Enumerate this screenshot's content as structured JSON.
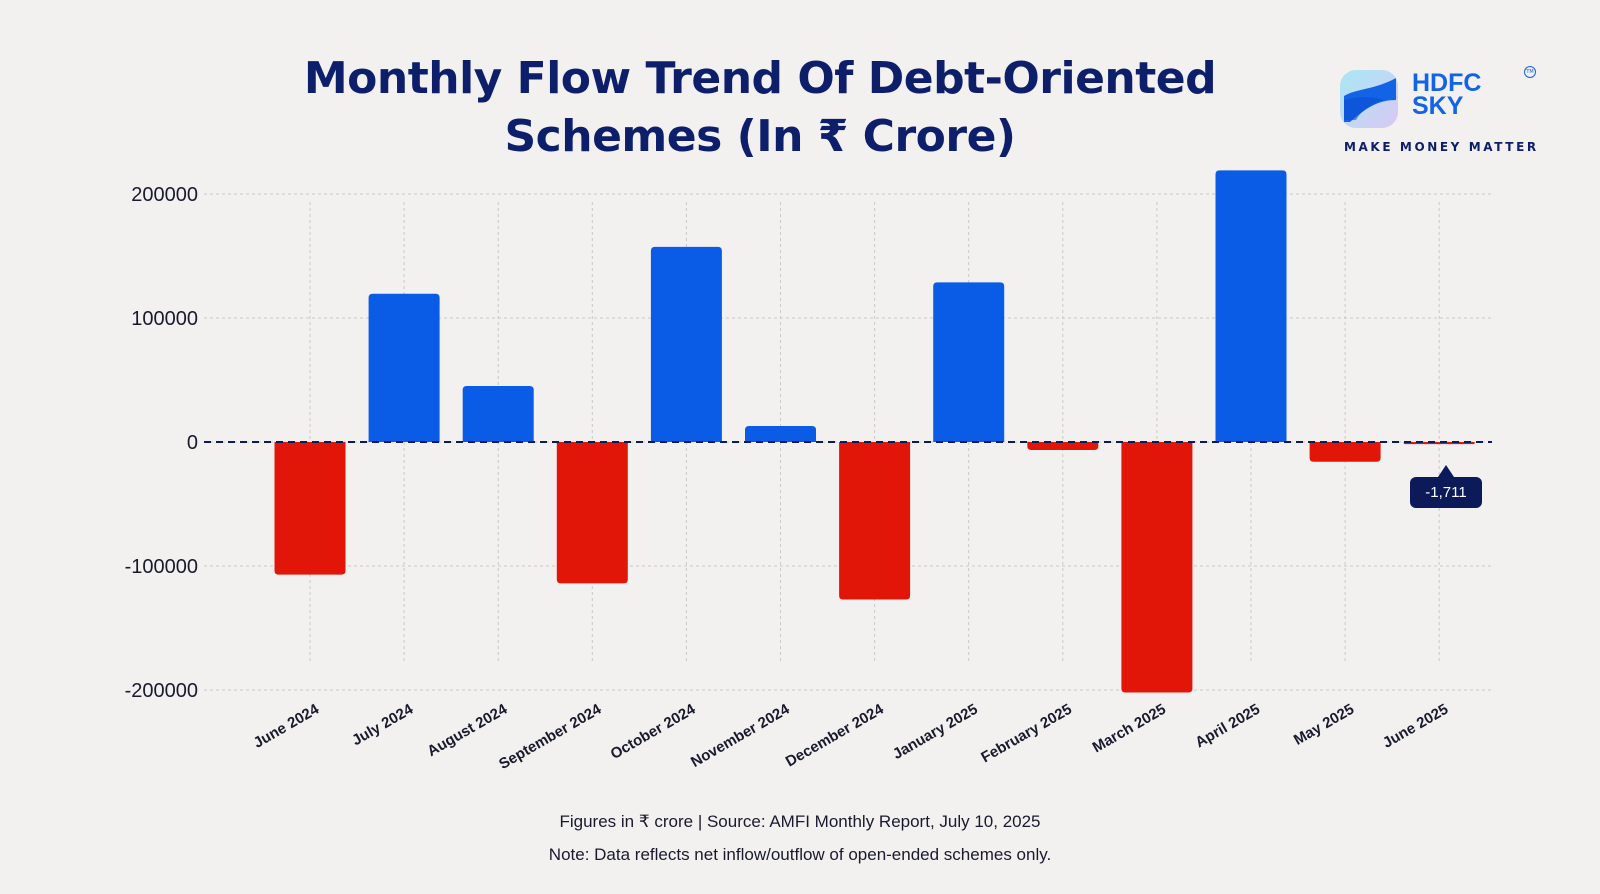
{
  "chart_data": {
    "type": "bar",
    "title": "Monthly Flow Trend Of Debt-Oriented Schemes (In ₹ Crore)",
    "title_lines": [
      "Monthly Flow Trend Of Debt-Oriented",
      "Schemes (In ₹ Crore)"
    ],
    "categories": [
      "June 2024",
      "July 2024",
      "August 2024",
      "September 2024",
      "October 2024",
      "November 2024",
      "December 2024",
      "January 2025",
      "February 2025",
      "March 2025",
      "April 2025",
      "May 2025",
      "June 2025"
    ],
    "values": [
      -107000,
      119600,
      45200,
      -114000,
      157400,
      12900,
      -127000,
      128700,
      -6500,
      -202000,
      219100,
      -15900,
      -1711
    ],
    "ylim": [
      -200000,
      200000
    ],
    "yticks": [
      200000,
      100000,
      0,
      -100000,
      -200000
    ],
    "ytick_labels": [
      "200000",
      "100000",
      "0",
      "-100000",
      "-200000"
    ],
    "xlabel": "",
    "ylabel": "",
    "grid": true,
    "colors": {
      "positive": "#0a5ce6",
      "negative": "#e21608",
      "zero_line": "#0c1a5a"
    },
    "annotation": {
      "category": "June 2025",
      "label": "-1,711"
    }
  },
  "brand": {
    "name_line1": "HDFC",
    "name_line2": "SKY",
    "tagline": "MAKE MONEY MATTER",
    "tm": "TM"
  },
  "footer": {
    "line1": "Figures in ₹ crore  |  Source: AMFI Monthly Report, July 10, 2025",
    "line2": "Note: Data reflects net inflow/outflow of open-ended schemes only."
  }
}
